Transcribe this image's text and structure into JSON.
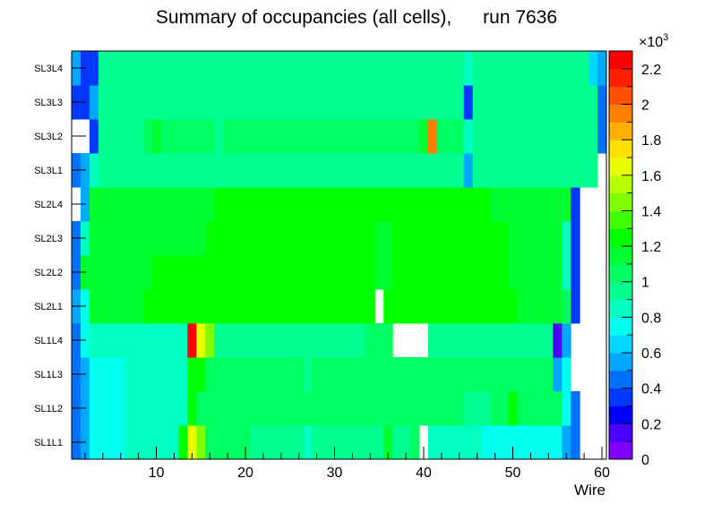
{
  "chart_data": {
    "type": "heatmap",
    "title": "Summary of occupancies (all cells),      run 7636",
    "xlabel": "Wire",
    "ylabel": "",
    "x_range": [
      0.5,
      60.5
    ],
    "x_ticks": [
      "10",
      "20",
      "30",
      "40",
      "50",
      "60"
    ],
    "x_tick_values": [
      10,
      20,
      30,
      40,
      50,
      60
    ],
    "layers": [
      "SL1L1",
      "SL1L2",
      "SL1L3",
      "SL1L4",
      "SL2L1",
      "SL2L2",
      "SL2L3",
      "SL2L4",
      "SL3L1",
      "SL3L2",
      "SL3L3",
      "SL3L4"
    ],
    "z_range": [
      0,
      2300
    ],
    "z_exponent_label": "×10",
    "z_exponent_power": "3",
    "z_ticks": [
      "0",
      "0.2",
      "0.4",
      "0.6",
      "0.8",
      "1",
      "1.2",
      "1.4",
      "1.6",
      "1.8",
      "2",
      "2.2"
    ],
    "z_tick_values": [
      0,
      200,
      400,
      600,
      800,
      1000,
      1200,
      1400,
      1600,
      1800,
      2000,
      2200
    ],
    "palette": [
      "#8000ff",
      "#4a00ff",
      "#0000ff",
      "#0038ff",
      "#0070ff",
      "#00a8ff",
      "#00d8ff",
      "#00ffee",
      "#00ffc0",
      "#00ff90",
      "#00ff60",
      "#00ff30",
      "#00ff00",
      "#40ff00",
      "#80ff00",
      "#b8ff00",
      "#e8ff00",
      "#ffe000",
      "#ffb000",
      "#ff8000",
      "#ff5000",
      "#ff2000",
      "#ff0000"
    ],
    "values": [
      [
        400,
        580,
        720,
        720,
        720,
        720,
        820,
        820,
        820,
        820,
        820,
        820,
        1300,
        1650,
        1420,
        1000,
        1000,
        1000,
        1000,
        1000,
        930,
        930,
        930,
        930,
        930,
        930,
        880,
        930,
        930,
        930,
        930,
        930,
        930,
        930,
        930,
        1100,
        930,
        930,
        1000,
        null,
        830,
        830,
        830,
        830,
        830,
        830,
        730,
        730,
        730,
        730,
        730,
        730,
        730,
        730,
        730,
        580,
        440,
        null,
        null,
        null
      ],
      [
        400,
        580,
        720,
        720,
        720,
        720,
        820,
        820,
        820,
        820,
        820,
        820,
        820,
        1200,
        1000,
        1000,
        1000,
        1000,
        1000,
        1000,
        1000,
        1000,
        1000,
        1000,
        1000,
        1000,
        1000,
        1000,
        1000,
        1000,
        1000,
        1000,
        1000,
        1000,
        1000,
        1000,
        1000,
        1000,
        1000,
        1000,
        1000,
        1000,
        1000,
        1000,
        900,
        900,
        900,
        1000,
        1000,
        1200,
        1000,
        1000,
        1000,
        1000,
        1000,
        730,
        440,
        null,
        null,
        null
      ],
      [
        400,
        580,
        720,
        720,
        720,
        720,
        820,
        820,
        820,
        820,
        820,
        820,
        820,
        1200,
        1300,
        1000,
        1000,
        1000,
        1000,
        1000,
        1000,
        1000,
        1000,
        1000,
        1000,
        1000,
        930,
        1000,
        1000,
        1000,
        1000,
        1000,
        1000,
        1000,
        1000,
        1000,
        1000,
        1000,
        1000,
        1000,
        1000,
        1000,
        1000,
        1000,
        1000,
        1000,
        1000,
        1000,
        1000,
        1000,
        1000,
        1000,
        1000,
        1000,
        580,
        730,
        null,
        null,
        null,
        null
      ],
      [
        400,
        730,
        820,
        820,
        820,
        820,
        820,
        820,
        820,
        820,
        820,
        820,
        820,
        2200,
        1650,
        1420,
        930,
        930,
        930,
        930,
        930,
        930,
        930,
        930,
        930,
        930,
        930,
        930,
        930,
        930,
        930,
        930,
        930,
        1000,
        1000,
        1000,
        null,
        null,
        null,
        null,
        930,
        930,
        930,
        930,
        930,
        930,
        930,
        930,
        930,
        930,
        930,
        930,
        930,
        930,
        100,
        500,
        null,
        null,
        null,
        null
      ],
      [
        580,
        730,
        1100,
        1100,
        1100,
        1100,
        1100,
        1100,
        1200,
        1200,
        1200,
        1200,
        1200,
        1200,
        1200,
        1200,
        1200,
        1200,
        1200,
        1200,
        1200,
        1200,
        1200,
        1200,
        1200,
        1200,
        1200,
        1200,
        1200,
        1200,
        1200,
        1200,
        1200,
        1200,
        null,
        1200,
        1200,
        1200,
        1200,
        1200,
        1200,
        1200,
        1200,
        1200,
        1200,
        1200,
        1200,
        1200,
        1200,
        1200,
        1100,
        1100,
        1100,
        1100,
        1100,
        1000,
        360,
        null,
        null,
        null
      ],
      [
        400,
        1100,
        1100,
        1100,
        1100,
        1100,
        1100,
        1100,
        1100,
        1200,
        1200,
        1200,
        1200,
        1200,
        1200,
        1200,
        1200,
        1200,
        1200,
        1200,
        1200,
        1200,
        1200,
        1200,
        1200,
        1200,
        1200,
        1200,
        1200,
        1200,
        1200,
        1200,
        1200,
        1200,
        1100,
        1100,
        1200,
        1200,
        1200,
        1200,
        1200,
        1200,
        1200,
        1200,
        1200,
        1200,
        1200,
        1200,
        1200,
        1100,
        1100,
        1100,
        1100,
        1100,
        1100,
        820,
        360,
        null,
        null,
        null
      ],
      [
        400,
        820,
        1100,
        1100,
        1100,
        1100,
        1100,
        1100,
        1100,
        1100,
        1100,
        1100,
        1100,
        1100,
        1100,
        1200,
        1200,
        1200,
        1200,
        1200,
        1200,
        1200,
        1200,
        1200,
        1200,
        1200,
        1200,
        1200,
        1200,
        1200,
        1200,
        1200,
        1200,
        1200,
        1100,
        1100,
        1200,
        1200,
        1200,
        1200,
        1200,
        1200,
        1200,
        1200,
        1200,
        1200,
        1200,
        1200,
        1200,
        1100,
        1100,
        1100,
        1100,
        1100,
        1100,
        820,
        360,
        null,
        null,
        null
      ],
      [
        null,
        580,
        1100,
        1100,
        1100,
        1100,
        1100,
        1100,
        1150,
        1150,
        1150,
        1150,
        1150,
        1150,
        1150,
        1150,
        1200,
        1200,
        1200,
        1200,
        1200,
        1200,
        1200,
        1200,
        1200,
        1200,
        1200,
        1200,
        1200,
        1200,
        1200,
        1200,
        1200,
        1200,
        1200,
        1200,
        1200,
        1200,
        1200,
        1200,
        1200,
        1200,
        1200,
        1200,
        1200,
        1200,
        1200,
        1100,
        1100,
        1100,
        1100,
        1100,
        1100,
        1100,
        1100,
        1100,
        360,
        null,
        null,
        null
      ],
      [
        400,
        580,
        820,
        930,
        930,
        930,
        930,
        930,
        930,
        930,
        930,
        930,
        930,
        930,
        930,
        930,
        930,
        930,
        930,
        930,
        930,
        930,
        930,
        930,
        930,
        930,
        930,
        930,
        930,
        930,
        930,
        930,
        930,
        930,
        930,
        930,
        930,
        930,
        930,
        930,
        930,
        930,
        930,
        930,
        580,
        930,
        930,
        930,
        930,
        930,
        930,
        930,
        930,
        930,
        930,
        930,
        930,
        930,
        930,
        null
      ],
      [
        null,
        null,
        360,
        930,
        930,
        930,
        930,
        930,
        1000,
        1150,
        1000,
        1000,
        1000,
        1000,
        1000,
        1000,
        930,
        1000,
        1000,
        1000,
        1000,
        1000,
        1000,
        1000,
        1000,
        1000,
        1000,
        1000,
        1000,
        1000,
        1000,
        1000,
        1000,
        1000,
        1000,
        1000,
        1000,
        1000,
        1000,
        1150,
        1900,
        1000,
        1000,
        1000,
        820,
        930,
        930,
        930,
        930,
        930,
        930,
        930,
        930,
        930,
        930,
        930,
        930,
        930,
        930,
        430
      ],
      [
        360,
        360,
        580,
        930,
        930,
        930,
        930,
        930,
        930,
        930,
        930,
        930,
        930,
        930,
        930,
        930,
        930,
        930,
        930,
        930,
        930,
        930,
        930,
        930,
        930,
        930,
        930,
        930,
        930,
        930,
        930,
        930,
        930,
        930,
        930,
        930,
        930,
        930,
        930,
        930,
        930,
        930,
        930,
        930,
        360,
        930,
        930,
        930,
        930,
        930,
        930,
        930,
        930,
        930,
        930,
        930,
        930,
        930,
        930,
        430
      ],
      [
        580,
        360,
        360,
        930,
        930,
        930,
        930,
        930,
        930,
        930,
        930,
        930,
        930,
        930,
        930,
        930,
        930,
        930,
        930,
        930,
        930,
        930,
        930,
        930,
        930,
        930,
        930,
        930,
        930,
        930,
        930,
        930,
        930,
        930,
        930,
        930,
        930,
        930,
        930,
        930,
        930,
        930,
        930,
        930,
        820,
        930,
        930,
        930,
        930,
        930,
        930,
        930,
        930,
        930,
        930,
        930,
        930,
        930,
        630,
        580
      ]
    ]
  }
}
